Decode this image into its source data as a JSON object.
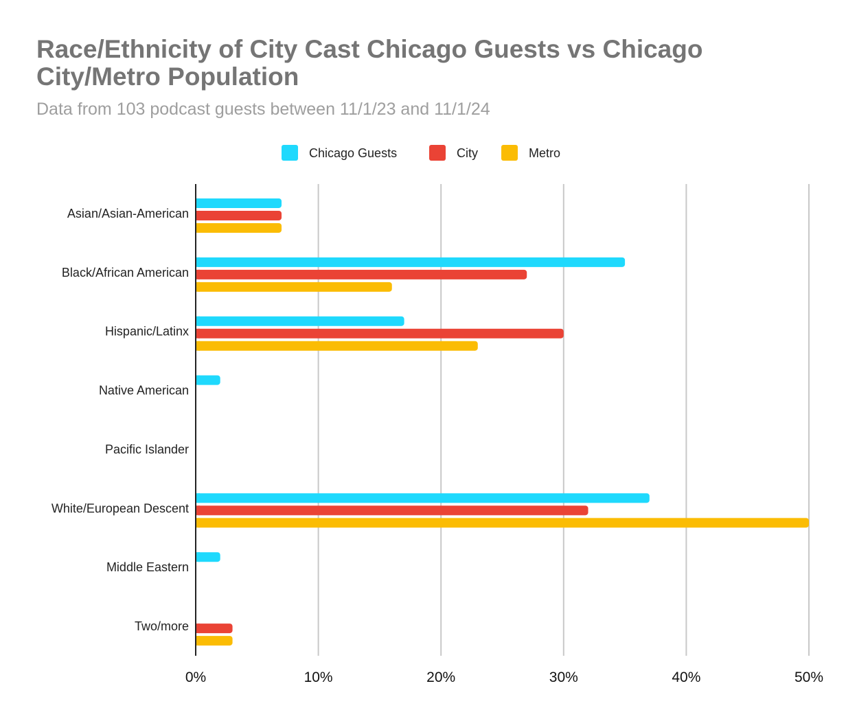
{
  "chart_data": {
    "type": "bar",
    "orientation": "horizontal",
    "title": "Race/Ethnicity of City Cast Chicago Guests vs Chicago City/Metro Population",
    "subtitle": "Data from 103 podcast guests between 11/1/23 and 11/1/24",
    "categories": [
      "Asian/Asian-American",
      "Black/African American",
      "Hispanic/Latinx",
      "Native American",
      "Pacific Islander",
      "White/European Descent",
      "Middle Eastern",
      "Two/more"
    ],
    "series": [
      {
        "name": "Chicago Guests",
        "color": "#1fd9fd",
        "values": [
          7,
          35,
          17,
          2,
          0,
          37,
          2,
          0
        ]
      },
      {
        "name": "City",
        "color": "#ea4335",
        "values": [
          7,
          27,
          30,
          0,
          0,
          32,
          0,
          3
        ]
      },
      {
        "name": "Metro",
        "color": "#fbbc04",
        "values": [
          7,
          16,
          23,
          0,
          0,
          50,
          0,
          3
        ]
      }
    ],
    "xlim": [
      0,
      50
    ],
    "xticks": [
      "0%",
      "10%",
      "20%",
      "30%",
      "40%",
      "50%"
    ],
    "xtick_values": [
      0,
      10,
      20,
      30,
      40,
      50
    ],
    "value_unit": "%",
    "grid": true,
    "legend_position": "top"
  }
}
